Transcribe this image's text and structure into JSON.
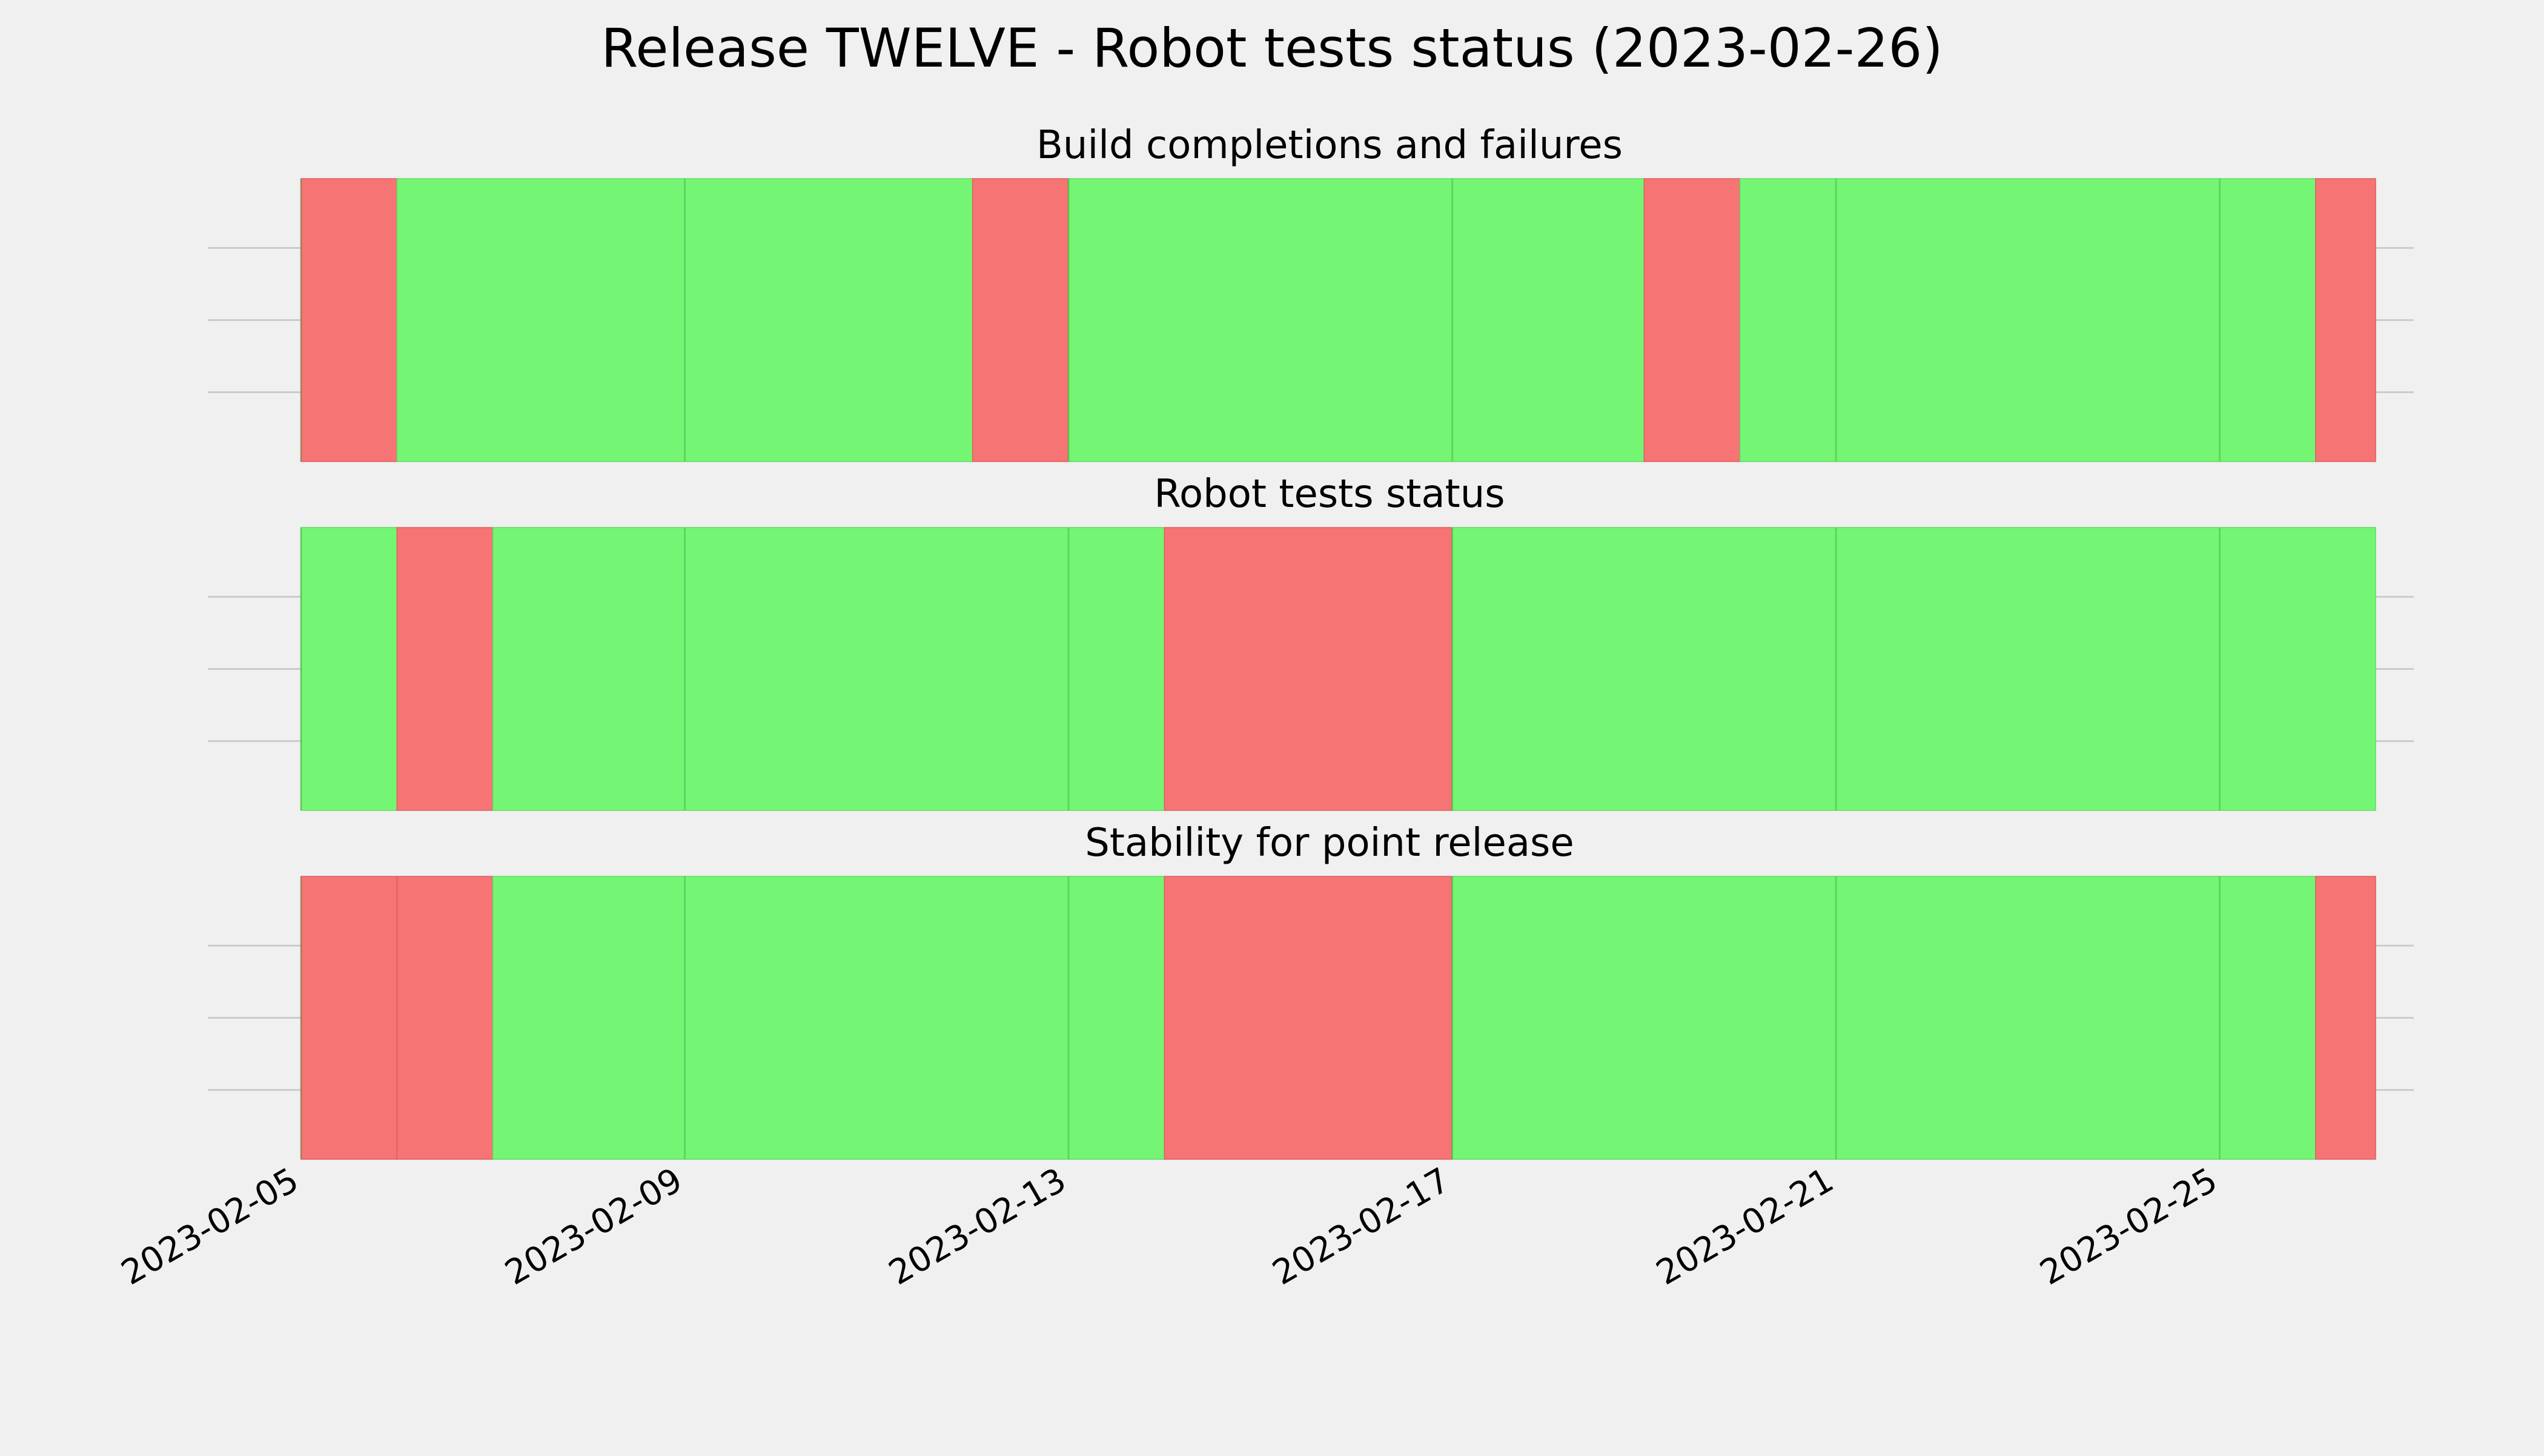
{
  "chart_data": {
    "type": "timeline",
    "title": "Release TWELVE - Robot tests status (2023-02-26)",
    "x_range": [
      "2023-02-05",
      "2023-02-26"
    ],
    "x_ticks": [
      "2023-02-05",
      "2023-02-09",
      "2023-02-13",
      "2023-02-17",
      "2023-02-21",
      "2023-02-25"
    ],
    "grid": true,
    "colors": {
      "background": "#f0f0f0",
      "pass": "#74f674",
      "fail": "#f67474",
      "grid": "#cbcbcb"
    },
    "panels": [
      {
        "title": "Build completions and failures",
        "segments": [
          {
            "start": "2023-02-05",
            "end": "2023-02-06",
            "status": "fail"
          },
          {
            "start": "2023-02-06",
            "end": "2023-02-12",
            "status": "pass"
          },
          {
            "start": "2023-02-12",
            "end": "2023-02-13",
            "status": "fail"
          },
          {
            "start": "2023-02-13",
            "end": "2023-02-19",
            "status": "pass"
          },
          {
            "start": "2023-02-19",
            "end": "2023-02-20",
            "status": "fail"
          },
          {
            "start": "2023-02-20",
            "end": "2023-02-26",
            "status": "pass"
          },
          {
            "start": "2023-02-26",
            "end": "2023-02-26T15:00",
            "status": "fail"
          }
        ]
      },
      {
        "title": "Robot tests status",
        "segments": [
          {
            "start": "2023-02-05",
            "end": "2023-02-06",
            "status": "pass"
          },
          {
            "start": "2023-02-06",
            "end": "2023-02-07",
            "status": "fail"
          },
          {
            "start": "2023-02-07",
            "end": "2023-02-14",
            "status": "pass"
          },
          {
            "start": "2023-02-14",
            "end": "2023-02-17",
            "status": "fail"
          },
          {
            "start": "2023-02-17",
            "end": "2023-02-26T15:00",
            "status": "pass"
          }
        ]
      },
      {
        "title": "Stability for point release",
        "segments": [
          {
            "start": "2023-02-05",
            "end": "2023-02-06",
            "status": "fail"
          },
          {
            "start": "2023-02-06",
            "end": "2023-02-07",
            "status": "fail"
          },
          {
            "start": "2023-02-07",
            "end": "2023-02-14",
            "status": "pass"
          },
          {
            "start": "2023-02-14",
            "end": "2023-02-17",
            "status": "fail"
          },
          {
            "start": "2023-02-17",
            "end": "2023-02-26",
            "status": "pass"
          },
          {
            "start": "2023-02-26",
            "end": "2023-02-26T15:00",
            "status": "fail"
          }
        ]
      }
    ]
  }
}
